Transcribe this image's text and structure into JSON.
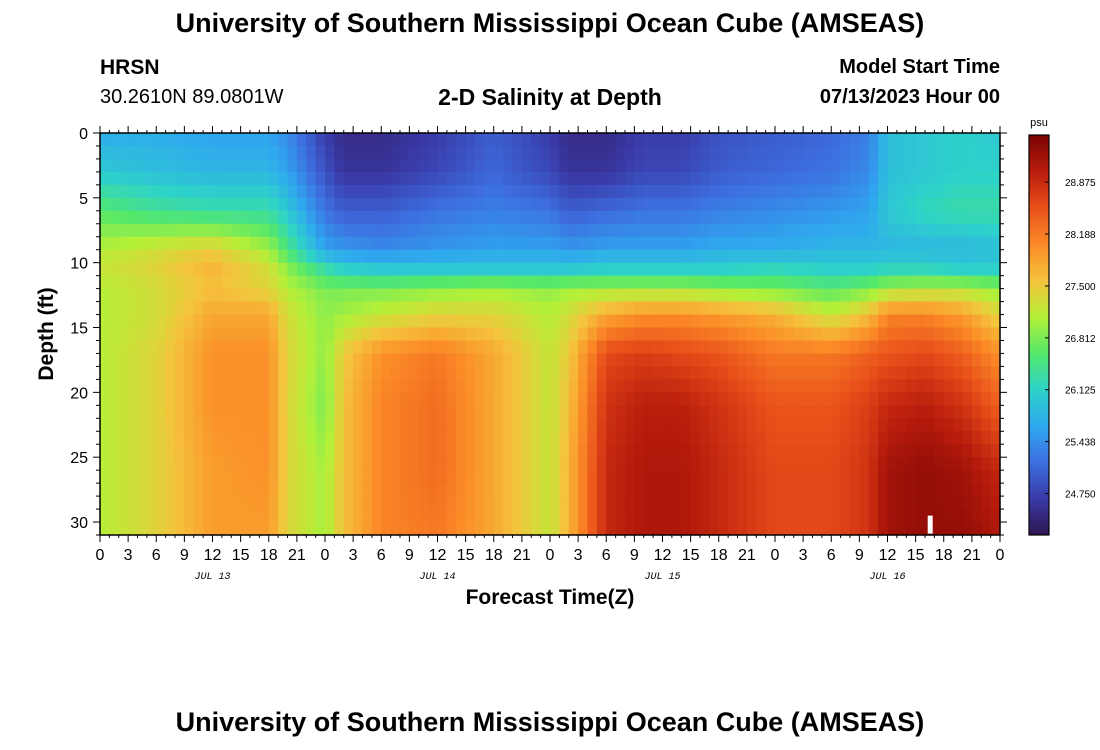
{
  "header": {
    "title": "University of Southern Mississippi Ocean Cube (AMSEAS)",
    "station": "HRSN",
    "coordinates": "30.2610N  89.0801W",
    "subtitle": "2-D Salinity at Depth",
    "model_start_label": "Model Start Time",
    "model_start_value": "07/13/2023 Hour 00"
  },
  "footer": {
    "title": "University of Southern Mississippi Ocean Cube (AMSEAS)"
  },
  "chart_data": {
    "type": "heatmap",
    "title": "2-D Salinity at Depth",
    "xlabel": "Forecast Time(Z)",
    "ylabel": "Depth (ft)",
    "x_range_hours": [
      0,
      96
    ],
    "x_tick_step_hours": 3,
    "x_tick_labels": [
      "0",
      "3",
      "6",
      "9",
      "12",
      "15",
      "18",
      "21",
      "0",
      "3",
      "6",
      "9",
      "12",
      "15",
      "18",
      "21",
      "0",
      "3",
      "6",
      "9",
      "12",
      "15",
      "18",
      "21",
      "0",
      "3",
      "6",
      "9",
      "12",
      "15",
      "18",
      "21",
      "0"
    ],
    "day_labels": [
      {
        "label": "JUL 13",
        "hour": 12
      },
      {
        "label": "JUL 14",
        "hour": 36
      },
      {
        "label": "JUL 15",
        "hour": 60
      },
      {
        "label": "JUL 16",
        "hour": 84
      }
    ],
    "y_range_ft": [
      0,
      31
    ],
    "y_ticks": [
      0,
      5,
      10,
      15,
      20,
      25,
      30
    ],
    "colorbar": {
      "unit": "psu",
      "range": [
        24.2,
        29.5
      ],
      "tick_values": [
        24.75,
        25.438,
        26.125,
        26.812,
        27.5,
        28.188,
        28.875
      ],
      "tick_labels": [
        "24.750",
        "25.438",
        "26.125",
        "26.812",
        "27.500",
        "28.188",
        "28.875"
      ],
      "colors": [
        "#2e1650",
        "#3a3aa8",
        "#3d6fe0",
        "#2fa8ef",
        "#2ed3c8",
        "#54e86a",
        "#b5f038",
        "#f5c33c",
        "#fb8a27",
        "#e8501a",
        "#b81c0c",
        "#7a0404"
      ]
    },
    "hours": [
      0,
      6,
      12,
      18,
      20,
      24,
      26,
      30,
      36,
      42,
      48,
      50,
      54,
      58,
      62,
      66,
      72,
      78,
      82,
      84,
      88,
      92,
      96
    ],
    "depths_ft": [
      0,
      3,
      6,
      9,
      10.5,
      12,
      14,
      17,
      21,
      26,
      31
    ],
    "salinity_psu": [
      [
        25.7,
        25.7,
        25.6,
        25.6,
        25.4,
        24.7,
        24.5,
        24.5,
        24.7,
        25.0,
        24.7,
        24.5,
        24.5,
        24.7,
        24.7,
        24.9,
        25.0,
        25.1,
        25.3,
        25.9,
        26.0,
        26.1,
        26.0
      ],
      [
        26.0,
        25.9,
        25.8,
        25.8,
        25.6,
        24.9,
        24.6,
        24.6,
        24.8,
        25.1,
        24.8,
        24.6,
        24.6,
        24.8,
        24.8,
        25.0,
        25.1,
        25.2,
        25.4,
        25.9,
        26.0,
        26.1,
        26.1
      ],
      [
        26.6,
        26.4,
        26.3,
        26.3,
        26.0,
        25.2,
        25.0,
        25.0,
        25.2,
        25.3,
        25.2,
        25.0,
        25.1,
        25.2,
        25.2,
        25.3,
        25.4,
        25.5,
        25.6,
        26.0,
        26.2,
        26.3,
        26.3
      ],
      [
        27.1,
        27.3,
        27.5,
        27.0,
        26.5,
        25.6,
        25.5,
        25.4,
        25.5,
        25.6,
        25.6,
        25.5,
        25.6,
        25.6,
        25.6,
        25.7,
        25.7,
        25.8,
        25.8,
        25.8,
        25.8,
        25.8,
        25.9
      ],
      [
        27.2,
        27.4,
        27.7,
        27.3,
        26.9,
        26.3,
        26.1,
        26.0,
        26.0,
        26.0,
        26.0,
        26.0,
        26.1,
        26.1,
        26.1,
        26.1,
        26.2,
        26.1,
        26.1,
        26.2,
        26.2,
        26.1,
        26.1
      ],
      [
        27.1,
        27.3,
        27.6,
        27.4,
        27.1,
        26.8,
        26.8,
        26.8,
        26.9,
        27.0,
        26.9,
        27.0,
        27.0,
        27.0,
        27.0,
        26.9,
        26.8,
        26.6,
        26.8,
        27.0,
        27.1,
        27.1,
        26.9
      ],
      [
        27.1,
        27.3,
        27.8,
        27.8,
        27.3,
        26.9,
        27.0,
        27.2,
        27.4,
        27.4,
        27.1,
        27.3,
        27.8,
        28.0,
        28.0,
        27.9,
        27.7,
        27.2,
        27.6,
        28.1,
        28.1,
        27.9,
        27.4
      ],
      [
        27.1,
        27.4,
        28.0,
        28.0,
        27.4,
        26.9,
        27.5,
        28.0,
        28.2,
        27.8,
        27.2,
        27.5,
        28.6,
        28.7,
        28.6,
        28.5,
        28.2,
        28.2,
        28.4,
        28.5,
        28.6,
        28.4,
        28.0
      ],
      [
        27.1,
        27.4,
        28.0,
        28.0,
        27.4,
        26.8,
        27.6,
        28.1,
        28.3,
        27.8,
        27.2,
        27.6,
        28.8,
        29.0,
        29.0,
        28.8,
        28.5,
        28.5,
        28.7,
        28.9,
        29.0,
        28.8,
        28.4
      ],
      [
        27.1,
        27.4,
        27.9,
        28.0,
        27.4,
        27.0,
        27.6,
        28.1,
        28.3,
        27.8,
        27.2,
        27.7,
        28.9,
        29.1,
        29.1,
        28.9,
        28.6,
        28.6,
        28.8,
        29.2,
        29.3,
        29.2,
        28.9
      ],
      [
        27.1,
        27.4,
        27.9,
        27.9,
        27.4,
        27.0,
        27.6,
        28.1,
        28.2,
        27.8,
        27.2,
        27.7,
        28.9,
        29.1,
        29.1,
        28.9,
        28.6,
        28.6,
        28.8,
        29.2,
        29.3,
        29.3,
        29.1
      ]
    ],
    "marker": {
      "hour": 88.5,
      "depth_ft": 30.2
    }
  }
}
